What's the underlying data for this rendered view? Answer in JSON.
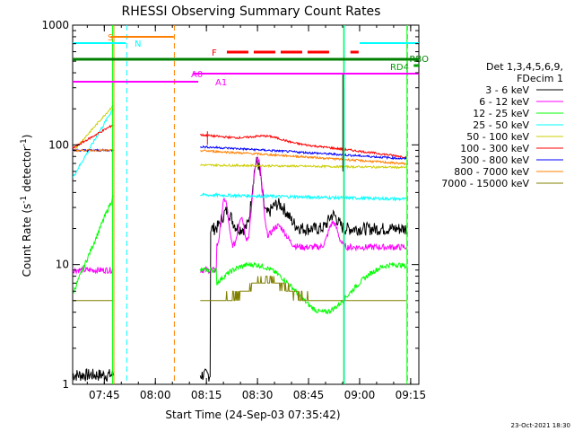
{
  "chart_data": {
    "type": "line",
    "title": "RHESSI Observing Summary Count Rates",
    "xlabel": "Start Time (24-Sep-03 07:35:42)",
    "ylabel_main": "Count Rate (s",
    "ylabel_sup1": "-1",
    "ylabel_mid": " detector",
    "ylabel_sup2": "-1",
    "ylabel_end": ")",
    "x_ticks": [
      {
        "t": 7.75,
        "label": "07:45"
      },
      {
        "t": 8.0,
        "label": "08:00"
      },
      {
        "t": 8.25,
        "label": "08:15"
      },
      {
        "t": 8.5,
        "label": "08:30"
      },
      {
        "t": 8.75,
        "label": "08:45"
      },
      {
        "t": 9.0,
        "label": "09:00"
      },
      {
        "t": 9.25,
        "label": "09:15"
      }
    ],
    "xlim": [
      7.595,
      9.29
    ],
    "y_ticks": [
      {
        "v": 1,
        "label": "1"
      },
      {
        "v": 10,
        "label": "10"
      },
      {
        "v": 100,
        "label": "100"
      },
      {
        "v": 1000,
        "label": "1000"
      }
    ],
    "ylim": [
      1,
      1000
    ],
    "yscale": "log",
    "legend_header": [
      "Det 1,3,4,5,6,9,",
      "FDecim 1"
    ],
    "series": [
      {
        "name": "3 - 6 keV",
        "color": "#000000"
      },
      {
        "name": "6 - 12 keV",
        "color": "#ff00ff"
      },
      {
        "name": "12 - 25 keV",
        "color": "#00ff00"
      },
      {
        "name": "25 - 50 keV",
        "color": "#00ffff"
      },
      {
        "name": "50 - 100 keV",
        "color": "#cccc00"
      },
      {
        "name": "100 - 300 keV",
        "color": "#ff0000"
      },
      {
        "name": "300 - 800 keV",
        "color": "#0000ff"
      },
      {
        "name": "800 - 7000 keV",
        "color": "#ff8000"
      },
      {
        "name": "7000 - 15000 keV",
        "color": "#808000"
      }
    ],
    "flags": [
      {
        "label": "S",
        "color": "#ff8000"
      },
      {
        "label": "N",
        "color": "#00ffff"
      },
      {
        "label": "F",
        "color": "#ff0000"
      },
      {
        "label": "RBO",
        "color": "#008000"
      },
      {
        "label": "RD4",
        "color": "#00a000"
      },
      {
        "label": "A0",
        "color": "#ff00ff"
      },
      {
        "label": "A1",
        "color": "#ff00ff"
      }
    ]
  },
  "footer_date": "23-Oct-2021 18:30"
}
